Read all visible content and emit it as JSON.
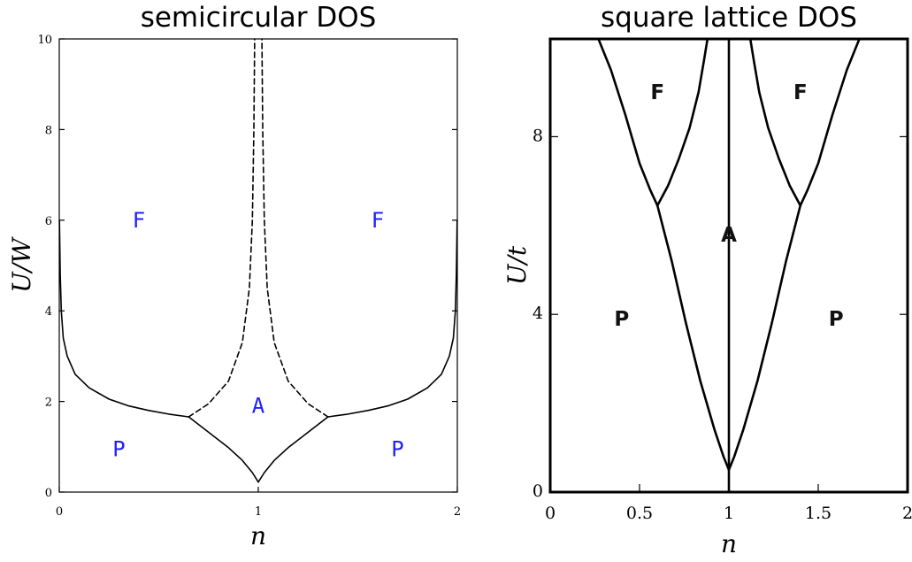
{
  "chart_data": [
    {
      "type": "line",
      "title": "semicircular DOS",
      "xlabel": "n",
      "ylabel": "U/W",
      "xlim": [
        0,
        2
      ],
      "ylim": [
        0,
        10
      ],
      "xticks": [
        0,
        1,
        2
      ],
      "yticks": [
        0,
        2,
        4,
        6,
        8,
        10
      ],
      "grid": false,
      "series": [
        {
          "style": "solid",
          "points": [
            [
              0.001,
              6.0
            ],
            [
              0.005,
              4.8
            ],
            [
              0.01,
              4.0
            ],
            [
              0.02,
              3.4
            ],
            [
              0.04,
              3.0
            ],
            [
              0.08,
              2.6
            ],
            [
              0.15,
              2.3
            ],
            [
              0.25,
              2.05
            ],
            [
              0.35,
              1.9
            ],
            [
              0.45,
              1.8
            ],
            [
              0.55,
              1.72
            ],
            [
              0.65,
              1.66
            ]
          ]
        },
        {
          "style": "solid",
          "points": [
            [
              1.35,
              1.66
            ],
            [
              1.45,
              1.72
            ],
            [
              1.55,
              1.8
            ],
            [
              1.65,
              1.9
            ],
            [
              1.75,
              2.05
            ],
            [
              1.85,
              2.3
            ],
            [
              1.92,
              2.6
            ],
            [
              1.96,
              3.0
            ],
            [
              1.98,
              3.4
            ],
            [
              1.99,
              4.0
            ],
            [
              1.995,
              4.8
            ],
            [
              1.999,
              6.0
            ]
          ]
        },
        {
          "style": "solid",
          "points": [
            [
              0.65,
              1.66
            ],
            [
              0.75,
              1.32
            ],
            [
              0.85,
              0.98
            ],
            [
              0.92,
              0.7
            ],
            [
              0.97,
              0.43
            ],
            [
              1.0,
              0.22
            ]
          ]
        },
        {
          "style": "solid",
          "points": [
            [
              1.0,
              0.22
            ],
            [
              1.03,
              0.43
            ],
            [
              1.08,
              0.7
            ],
            [
              1.15,
              0.98
            ],
            [
              1.25,
              1.32
            ],
            [
              1.35,
              1.66
            ]
          ]
        },
        {
          "style": "dashed",
          "points": [
            [
              0.65,
              1.66
            ],
            [
              0.75,
              1.95
            ],
            [
              0.85,
              2.45
            ],
            [
              0.92,
              3.3
            ],
            [
              0.955,
              4.5
            ],
            [
              0.97,
              6.0
            ],
            [
              0.978,
              8.0
            ],
            [
              0.982,
              10.0
            ]
          ]
        },
        {
          "style": "dashed",
          "points": [
            [
              1.35,
              1.66
            ],
            [
              1.25,
              1.95
            ],
            [
              1.15,
              2.45
            ],
            [
              1.08,
              3.3
            ],
            [
              1.045,
              4.5
            ],
            [
              1.03,
              6.0
            ],
            [
              1.022,
              8.0
            ],
            [
              1.018,
              10.0
            ]
          ]
        }
      ],
      "regions": [
        {
          "label": "F",
          "x": 0.4,
          "y": 6.0
        },
        {
          "label": "F",
          "x": 1.6,
          "y": 6.0
        },
        {
          "label": "A",
          "x": 1.0,
          "y": 1.9
        },
        {
          "label": "P",
          "x": 0.3,
          "y": 0.95
        },
        {
          "label": "P",
          "x": 1.7,
          "y": 0.95
        }
      ]
    },
    {
      "type": "line",
      "title": "square lattice DOS",
      "xlabel": "n",
      "ylabel": "U/t",
      "xlim": [
        0,
        2
      ],
      "ylim": [
        0,
        10.2
      ],
      "xticks": [
        "0",
        "0.5",
        "1",
        "1.5",
        "2"
      ],
      "yticks": [
        0,
        4,
        8
      ],
      "grid": false,
      "series": [
        {
          "style": "solid",
          "points": [
            [
              0.27,
              10.2
            ],
            [
              0.34,
              9.5
            ],
            [
              0.42,
              8.5
            ],
            [
              0.5,
              7.4
            ],
            [
              0.56,
              6.8
            ],
            [
              0.6,
              6.45
            ]
          ]
        },
        {
          "style": "solid",
          "points": [
            [
              0.6,
              6.45
            ],
            [
              0.68,
              5.2
            ],
            [
              0.76,
              3.8
            ],
            [
              0.84,
              2.5
            ],
            [
              0.92,
              1.4
            ],
            [
              0.97,
              0.8
            ],
            [
              1.0,
              0.5
            ]
          ]
        },
        {
          "style": "solid",
          "points": [
            [
              1.0,
              0.5
            ],
            [
              1.03,
              0.8
            ],
            [
              1.08,
              1.4
            ],
            [
              1.16,
              2.5
            ],
            [
              1.24,
              3.8
            ],
            [
              1.32,
              5.2
            ],
            [
              1.4,
              6.45
            ]
          ]
        },
        {
          "style": "solid",
          "points": [
            [
              1.4,
              6.45
            ],
            [
              1.44,
              6.8
            ],
            [
              1.5,
              7.4
            ],
            [
              1.58,
              8.5
            ],
            [
              1.66,
              9.5
            ],
            [
              1.73,
              10.2
            ]
          ]
        },
        {
          "style": "solid",
          "points": [
            [
              0.6,
              6.45
            ],
            [
              0.66,
              6.9
            ],
            [
              0.72,
              7.5
            ],
            [
              0.78,
              8.2
            ],
            [
              0.83,
              9.0
            ],
            [
              0.86,
              9.7
            ],
            [
              0.88,
              10.2
            ]
          ]
        },
        {
          "style": "solid",
          "points": [
            [
              1.4,
              6.45
            ],
            [
              1.34,
              6.9
            ],
            [
              1.28,
              7.5
            ],
            [
              1.22,
              8.2
            ],
            [
              1.17,
              9.0
            ],
            [
              1.14,
              9.7
            ],
            [
              1.12,
              10.2
            ]
          ]
        },
        {
          "style": "solid",
          "points": [
            [
              1.0,
              0.0
            ],
            [
              1.0,
              10.2
            ]
          ]
        }
      ],
      "regions": [
        {
          "label": "F",
          "x": 0.6,
          "y": 9.0
        },
        {
          "label": "F",
          "x": 1.4,
          "y": 9.0
        },
        {
          "label": "A",
          "x": 1.0,
          "y": 5.8
        },
        {
          "label": "P",
          "x": 0.4,
          "y": 3.9
        },
        {
          "label": "P",
          "x": 1.6,
          "y": 3.9
        }
      ]
    }
  ]
}
